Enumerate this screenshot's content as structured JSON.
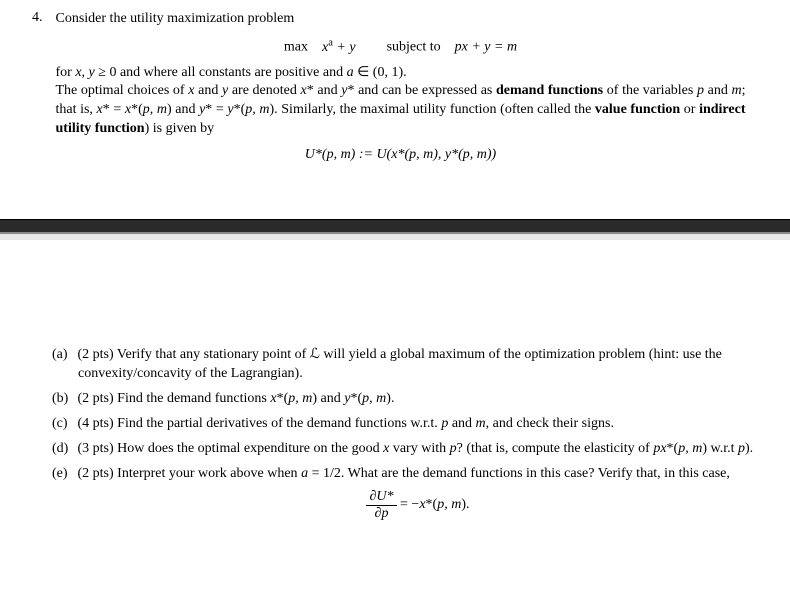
{
  "problem": {
    "number": "4.",
    "intro_line1": "Consider the utility maximization problem",
    "objective_prefix": "max",
    "objective_expr_html": "x<span class='sup rm'>a</span> + y",
    "subject_to_label": "subject to",
    "constraint_html": "px + y = m",
    "intro_para_html": "for <span class='math'>x, y</span> ≥ 0 and where all constants are positive and <span class='math'>a</span> ∈ (0, 1).<br>The optimal choices of <span class='math'>x</span> and <span class='math'>y</span> are denoted <span class='math'>x</span>* and <span class='math'>y</span>* and can be expressed as <span class='bold'>demand functions</span> of the variables <span class='math'>p</span> and <span class='math'>m</span>; that is, <span class='math'>x</span>* = <span class='math'>x</span>*(<span class='math'>p, m</span>) and <span class='math'>y</span>* = <span class='math'>y</span>*(<span class='math'>p, m</span>). Similarly, the maximal utility function (often called the <span class='bold'>value function</span> or <span class='bold'>indirect utility function</span>) is given by",
    "value_fn_html": "U*(p, m) := U(x*(p, m), y*(p, m))"
  },
  "parts": {
    "a": {
      "label": "(a)",
      "pts": "(2 pts)",
      "text_html": "Verify that any stationary point of <span class='math rm'>ℒ</span> will yield a global maximum of the optimization problem (hint: use the convexity/concavity of the Lagrangian)."
    },
    "b": {
      "label": "(b)",
      "pts": "(2 pts)",
      "text_html": "Find the demand functions <span class='math'>x</span>*(<span class='math'>p, m</span>) and <span class='math'>y</span>*(<span class='math'>p, m</span>)."
    },
    "c": {
      "label": "(c)",
      "pts": "(4 pts)",
      "text_html": "Find the partial derivatives of the demand functions w.r.t. <span class='math'>p</span> and <span class='math'>m</span>, and check their signs."
    },
    "d": {
      "label": "(d)",
      "pts": "(3 pts)",
      "text_html": "How does the optimal expenditure on the good <span class='math'>x</span> vary with <span class='math'>p</span>? (that is, compute the elasticity of <span class='math'>px</span>*(<span class='math'>p, m</span>) w.r.t <span class='math'>p</span>)."
    },
    "e": {
      "label": "(e)",
      "pts": "(2 pts)",
      "text_html": "Interpret your work above when <span class='math'>a</span> = 1/2. What are the demand functions in this case? Verify that, in this case,"
    }
  },
  "final_eq": {
    "frac_num": "∂U*",
    "frac_den": "∂p",
    "rhs_html": " = −<span class='math'>x</span>*(<span class='math'>p, m</span>)."
  }
}
